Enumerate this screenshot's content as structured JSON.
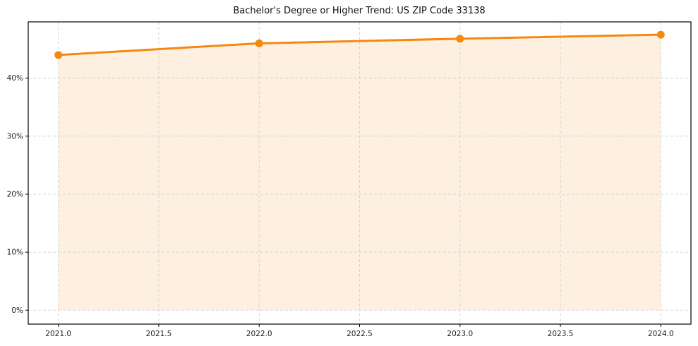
{
  "chart_data": {
    "type": "area",
    "title": "Bachelor's Degree or Higher Trend: US ZIP Code 33138",
    "x": [
      2021,
      2022,
      2023,
      2024
    ],
    "values": [
      44.0,
      46.0,
      46.8,
      47.5
    ],
    "xlabel": "",
    "ylabel": "",
    "xlim": [
      2020.85,
      2024.15
    ],
    "ylim": [
      -2.4,
      49.7
    ],
    "fill_baseline": 0,
    "xticks": {
      "values": [
        2021.0,
        2021.5,
        2022.0,
        2022.5,
        2023.0,
        2023.5,
        2024.0
      ],
      "labels": [
        "2021.0",
        "2021.5",
        "2022.0",
        "2022.5",
        "2023.0",
        "2023.5",
        "2024.0"
      ]
    },
    "yticks": {
      "values": [
        0,
        10,
        20,
        30,
        40
      ],
      "labels": [
        "0%",
        "10%",
        "20%",
        "30%",
        "40%"
      ]
    },
    "grid": true,
    "legend": false,
    "colors": {
      "line": "#f5890f",
      "marker": "#f5890f",
      "fill": "#fdf0e0",
      "grid": "#cccccc",
      "border": "#000000",
      "background": "#ffffff",
      "text": "#1c1c1c"
    }
  }
}
